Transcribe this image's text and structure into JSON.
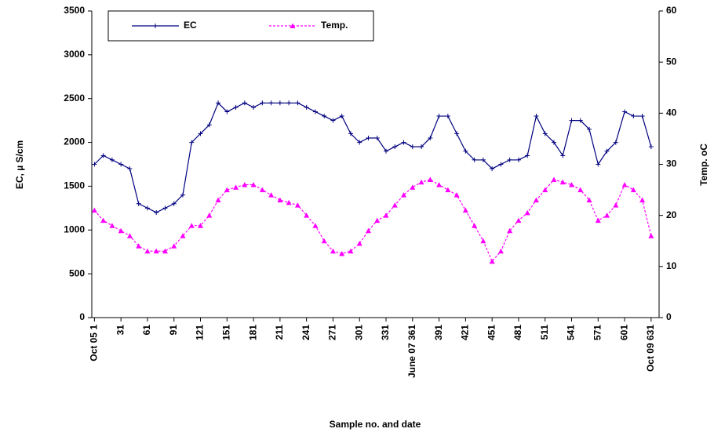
{
  "chart_data": {
    "type": "line",
    "xlabel": "Sample no. and date",
    "ylabel": "EC, µ S/cm",
    "y2label": "Temp. oC",
    "x": [
      1,
      11,
      21,
      31,
      41,
      51,
      61,
      71,
      81,
      91,
      101,
      111,
      121,
      131,
      141,
      151,
      161,
      171,
      181,
      191,
      201,
      211,
      221,
      231,
      241,
      251,
      261,
      271,
      281,
      291,
      301,
      311,
      321,
      331,
      341,
      351,
      361,
      371,
      381,
      391,
      401,
      411,
      421,
      431,
      441,
      451,
      461,
      471,
      481,
      491,
      501,
      511,
      521,
      531,
      541,
      551,
      561,
      571,
      581,
      591,
      601,
      611,
      621,
      631
    ],
    "series": [
      {
        "name": "EC",
        "color": "#000080",
        "marker": "cross",
        "dash": false,
        "values": [
          1750,
          1850,
          1800,
          1750,
          1700,
          1300,
          1250,
          1200,
          1250,
          1300,
          1400,
          2000,
          2100,
          2200,
          2450,
          2350,
          2400,
          2450,
          2400,
          2450,
          2450,
          2450,
          2450,
          2450,
          2400,
          2350,
          2300,
          2250,
          2300,
          2100,
          2000,
          2050,
          2050,
          1900,
          1950,
          2000,
          1950,
          1950,
          2050,
          2300,
          2300,
          2100,
          1900,
          1800,
          1800,
          1700,
          1750,
          1800,
          1800,
          1850,
          2300,
          2100,
          2000,
          1850,
          2250,
          2250,
          2150,
          1750,
          1900,
          2000,
          2350,
          2300,
          2300,
          1950
        ]
      },
      {
        "name": "Temp.",
        "color": "#ff00ff",
        "marker": "triangle",
        "dash": true,
        "axis": "y2",
        "values": [
          21,
          19,
          18,
          17,
          16,
          14,
          13,
          13,
          13,
          14,
          16,
          18,
          18,
          20,
          23,
          25,
          25.5,
          26,
          26,
          25,
          24,
          23,
          22.5,
          22,
          20,
          18,
          15,
          13,
          12.5,
          13,
          14.5,
          17,
          19,
          20,
          22,
          24,
          25.5,
          26.5,
          27,
          26,
          25,
          24,
          21,
          18,
          15,
          11,
          13,
          17,
          19,
          20.5,
          23,
          25,
          27,
          26.5,
          26,
          25,
          23,
          19,
          20,
          22,
          26,
          25,
          23,
          16
        ]
      }
    ],
    "xlim": [
      -2,
      640
    ],
    "xticks": [
      {
        "value": 1,
        "label": "Oct 05 1"
      },
      31,
      61,
      91,
      121,
      151,
      181,
      211,
      241,
      271,
      301,
      331,
      {
        "value": 361,
        "label": "June 07 361"
      },
      391,
      421,
      451,
      481,
      511,
      541,
      571,
      601,
      {
        "value": 631,
        "label": "Oct 09 631"
      }
    ],
    "ylim": [
      0,
      3500
    ],
    "yticks": [
      0,
      500,
      1000,
      1500,
      2000,
      2500,
      3000,
      3500
    ],
    "y2lim": [
      0,
      60
    ],
    "y2ticks": [
      0,
      10,
      20,
      30,
      40,
      50,
      60
    ],
    "legend": "upper left"
  }
}
